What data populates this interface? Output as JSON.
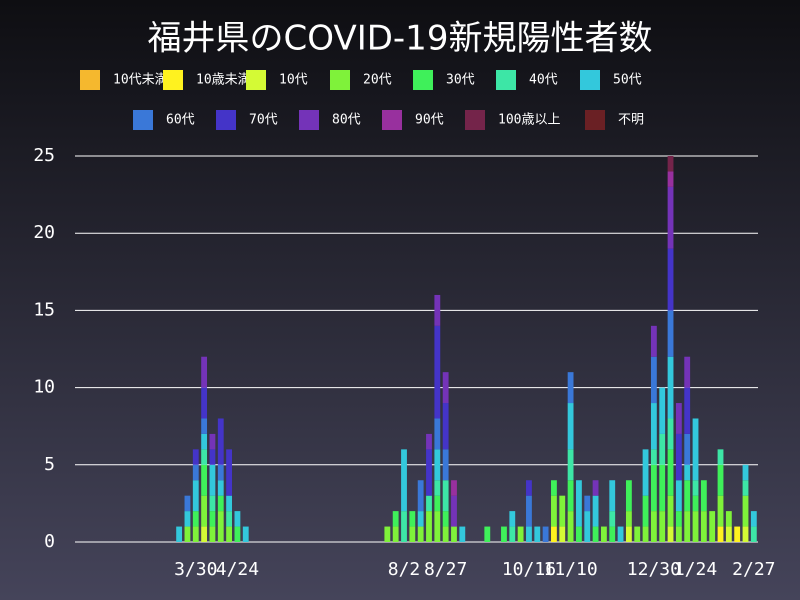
{
  "chart_data": {
    "type": "stacked_bar",
    "title": "福井県のCOVID-19新規陽性者数",
    "categories": [
      null,
      null,
      null,
      null,
      null,
      null,
      null,
      null,
      null,
      null,
      null,
      null,
      null,
      null,
      "3/30",
      null,
      null,
      null,
      null,
      "4/24",
      null,
      null,
      null,
      null,
      null,
      null,
      null,
      null,
      null,
      null,
      null,
      null,
      null,
      null,
      null,
      null,
      null,
      null,
      null,
      "8/2",
      null,
      null,
      null,
      null,
      "8/27",
      null,
      null,
      null,
      null,
      null,
      null,
      null,
      null,
      null,
      "10/16",
      null,
      null,
      null,
      null,
      "11/10",
      null,
      null,
      null,
      null,
      null,
      null,
      null,
      null,
      null,
      "12/30",
      null,
      null,
      null,
      null,
      "1/24",
      null,
      null,
      null,
      null,
      null,
      null,
      "2/27"
    ],
    "ylim": [
      0,
      25
    ],
    "yticks": [
      0,
      5,
      10,
      15,
      20,
      25
    ],
    "grid": true,
    "series": [
      {
        "name": "10代未満",
        "color": "#f5b82e",
        "values": [
          0,
          0,
          0,
          0,
          0,
          0,
          0,
          0,
          0,
          0,
          0,
          0,
          0,
          0,
          0,
          0,
          0,
          0,
          0,
          0,
          0,
          0,
          0,
          0,
          0,
          0,
          0,
          0,
          0,
          0,
          0,
          0,
          0,
          0,
          0,
          0,
          0,
          0,
          0,
          0,
          0,
          0,
          0,
          0,
          0,
          0,
          0,
          0,
          0,
          0,
          0,
          0,
          0,
          0,
          0,
          0,
          0,
          0,
          0,
          0,
          0,
          0,
          0,
          0,
          0,
          0,
          0,
          0,
          0,
          0,
          0,
          0,
          0,
          0,
          0,
          0,
          0,
          0,
          0,
          0,
          0,
          0
        ]
      },
      {
        "name": "10歳未満",
        "color": "#fff21f",
        "values": [
          0,
          0,
          0,
          0,
          0,
          0,
          0,
          0,
          0,
          0,
          0,
          0,
          0,
          0,
          0,
          0,
          0,
          0,
          0,
          0,
          0,
          0,
          0,
          0,
          0,
          0,
          0,
          0,
          0,
          0,
          0,
          0,
          0,
          0,
          0,
          0,
          0,
          0,
          0,
          0,
          0,
          0,
          0,
          0,
          0,
          0,
          0,
          0,
          0,
          0,
          0,
          0,
          0,
          0,
          0,
          0,
          0,
          1,
          0,
          0,
          0,
          0,
          0,
          0,
          0,
          0,
          0,
          0,
          0,
          0,
          0,
          0,
          0,
          0,
          0,
          0,
          0,
          1,
          0,
          1,
          0,
          0
        ]
      },
      {
        "name": "10代",
        "color": "#d4fa35",
        "values": [
          0,
          0,
          0,
          0,
          0,
          0,
          0,
          0,
          0,
          0,
          0,
          0,
          0,
          0,
          0,
          1,
          0,
          0,
          0,
          0,
          0,
          0,
          0,
          0,
          0,
          0,
          0,
          0,
          0,
          0,
          0,
          0,
          0,
          0,
          0,
          0,
          0,
          0,
          0,
          0,
          0,
          0,
          0,
          0,
          0,
          0,
          0,
          0,
          0,
          0,
          0,
          0,
          0,
          0,
          0,
          0,
          0,
          0,
          1,
          0,
          0,
          0,
          0,
          0,
          0,
          0,
          1,
          0,
          0,
          0,
          0,
          1,
          0,
          0,
          0,
          0,
          0,
          0,
          1,
          0,
          1,
          0
        ]
      },
      {
        "name": "20代",
        "color": "#7ff23a",
        "values": [
          0,
          0,
          0,
          0,
          0,
          0,
          0,
          0,
          0,
          0,
          0,
          0,
          0,
          1,
          1,
          2,
          1,
          2,
          1,
          0,
          0,
          0,
          0,
          0,
          0,
          0,
          0,
          0,
          0,
          0,
          0,
          0,
          0,
          0,
          0,
          0,
          0,
          1,
          1,
          0,
          1,
          1,
          2,
          2,
          1,
          1,
          0,
          0,
          0,
          0,
          0,
          0,
          0,
          1,
          0,
          0,
          0,
          2,
          2,
          2,
          0,
          0,
          0,
          1,
          0,
          0,
          1,
          1,
          1,
          2,
          2,
          2,
          1,
          2,
          2,
          2,
          2,
          2,
          1,
          0,
          2,
          0
        ]
      },
      {
        "name": "30代",
        "color": "#3ff05a",
        "values": [
          0,
          0,
          0,
          0,
          0,
          0,
          0,
          0,
          0,
          0,
          0,
          0,
          0,
          0,
          1,
          2,
          1,
          1,
          0,
          1,
          0,
          0,
          0,
          0,
          0,
          0,
          0,
          0,
          0,
          0,
          0,
          0,
          0,
          0,
          0,
          0,
          0,
          0,
          1,
          0,
          1,
          0,
          0,
          1,
          1,
          0,
          0,
          0,
          0,
          1,
          0,
          1,
          0,
          0,
          0,
          0,
          0,
          1,
          0,
          2,
          1,
          0,
          1,
          0,
          1,
          0,
          2,
          0,
          2,
          3,
          3,
          3,
          1,
          2,
          1,
          2,
          0,
          2,
          0,
          0,
          0,
          0
        ]
      },
      {
        "name": "40代",
        "color": "#3de6a6",
        "values": [
          0,
          0,
          0,
          0,
          0,
          0,
          0,
          0,
          0,
          0,
          0,
          0,
          0,
          0,
          0,
          1,
          1,
          0,
          1,
          0,
          0,
          0,
          0,
          0,
          0,
          0,
          0,
          0,
          0,
          0,
          0,
          0,
          0,
          0,
          0,
          0,
          0,
          0,
          0,
          2,
          0,
          0,
          1,
          1,
          2,
          0,
          0,
          0,
          0,
          0,
          0,
          0,
          1,
          0,
          0,
          0,
          0,
          0,
          0,
          2,
          0,
          0,
          0,
          0,
          1,
          0,
          0,
          0,
          0,
          1,
          2,
          2,
          0,
          0,
          1,
          0,
          0,
          1,
          0,
          0,
          1,
          1
        ]
      },
      {
        "name": "50代",
        "color": "#33c8dc",
        "values": [
          0,
          0,
          0,
          0,
          0,
          0,
          0,
          0,
          0,
          0,
          0,
          0,
          1,
          1,
          2,
          1,
          2,
          1,
          1,
          1,
          1,
          0,
          0,
          0,
          0,
          0,
          0,
          0,
          0,
          0,
          0,
          0,
          0,
          0,
          0,
          0,
          0,
          0,
          0,
          4,
          0,
          1,
          0,
          2,
          0,
          0,
          1,
          0,
          0,
          0,
          0,
          0,
          1,
          0,
          1,
          1,
          0,
          0,
          0,
          3,
          3,
          2,
          2,
          0,
          2,
          1,
          0,
          0,
          3,
          3,
          3,
          4,
          2,
          1,
          4,
          0,
          0,
          0,
          0,
          0,
          1,
          1
        ]
      },
      {
        "name": "60代",
        "color": "#3a78d8",
        "values": [
          0,
          0,
          0,
          0,
          0,
          0,
          0,
          0,
          0,
          0,
          0,
          0,
          0,
          1,
          1,
          1,
          0,
          1,
          0,
          0,
          0,
          0,
          0,
          0,
          0,
          0,
          0,
          0,
          0,
          0,
          0,
          0,
          0,
          0,
          0,
          0,
          0,
          0,
          0,
          0,
          0,
          2,
          0,
          2,
          2,
          0,
          0,
          0,
          0,
          0,
          0,
          0,
          0,
          0,
          2,
          0,
          1,
          0,
          0,
          2,
          0,
          1,
          0,
          0,
          0,
          0,
          0,
          0,
          0,
          3,
          0,
          3,
          0,
          2,
          0,
          0,
          0,
          0,
          0,
          0,
          0,
          0
        ]
      },
      {
        "name": "70代",
        "color": "#4434c8",
        "values": [
          0,
          0,
          0,
          0,
          0,
          0,
          0,
          0,
          0,
          0,
          0,
          0,
          0,
          0,
          1,
          2,
          1,
          3,
          3,
          0,
          0,
          0,
          0,
          0,
          0,
          0,
          0,
          0,
          0,
          0,
          0,
          0,
          0,
          0,
          0,
          0,
          0,
          0,
          0,
          0,
          0,
          0,
          3,
          6,
          3,
          0,
          0,
          0,
          0,
          0,
          0,
          0,
          0,
          0,
          1,
          0,
          0,
          0,
          0,
          0,
          0,
          0,
          0,
          0,
          0,
          0,
          0,
          0,
          0,
          0,
          0,
          4,
          3,
          3,
          0,
          0,
          0,
          0,
          0,
          0,
          0,
          0
        ]
      },
      {
        "name": "80代",
        "color": "#7433b8",
        "values": [
          0,
          0,
          0,
          0,
          0,
          0,
          0,
          0,
          0,
          0,
          0,
          0,
          0,
          0,
          0,
          2,
          1,
          0,
          0,
          0,
          0,
          0,
          0,
          0,
          0,
          0,
          0,
          0,
          0,
          0,
          0,
          0,
          0,
          0,
          0,
          0,
          0,
          0,
          0,
          0,
          0,
          0,
          1,
          2,
          2,
          2,
          0,
          0,
          0,
          0,
          0,
          0,
          0,
          0,
          0,
          0,
          0,
          0,
          0,
          0,
          0,
          0,
          1,
          0,
          0,
          0,
          0,
          0,
          0,
          2,
          0,
          4,
          2,
          2,
          0,
          0,
          0,
          0,
          0,
          0,
          0,
          0
        ]
      },
      {
        "name": "90代",
        "color": "#98309e",
        "values": [
          0,
          0,
          0,
          0,
          0,
          0,
          0,
          0,
          0,
          0,
          0,
          0,
          0,
          0,
          0,
          0,
          0,
          0,
          0,
          0,
          0,
          0,
          0,
          0,
          0,
          0,
          0,
          0,
          0,
          0,
          0,
          0,
          0,
          0,
          0,
          0,
          0,
          0,
          0,
          0,
          0,
          0,
          0,
          0,
          0,
          1,
          0,
          0,
          0,
          0,
          0,
          0,
          0,
          0,
          0,
          0,
          0,
          0,
          0,
          0,
          0,
          0,
          0,
          0,
          0,
          0,
          0,
          0,
          0,
          0,
          0,
          1,
          0,
          0,
          0,
          0,
          0,
          0,
          0,
          0,
          0,
          0
        ]
      },
      {
        "name": "100歳以上",
        "color": "#74244a",
        "values": [
          0,
          0,
          0,
          0,
          0,
          0,
          0,
          0,
          0,
          0,
          0,
          0,
          0,
          0,
          0,
          0,
          0,
          0,
          0,
          0,
          0,
          0,
          0,
          0,
          0,
          0,
          0,
          0,
          0,
          0,
          0,
          0,
          0,
          0,
          0,
          0,
          0,
          0,
          0,
          0,
          0,
          0,
          0,
          0,
          0,
          0,
          0,
          0,
          0,
          0,
          0,
          0,
          0,
          0,
          0,
          0,
          0,
          0,
          0,
          0,
          0,
          0,
          0,
          0,
          0,
          0,
          0,
          0,
          0,
          0,
          0,
          1,
          0,
          0,
          0,
          0,
          0,
          0,
          0,
          0,
          0,
          0
        ]
      },
      {
        "name": "不明",
        "color": "#6a2024",
        "values": [
          0,
          0,
          0,
          0,
          0,
          0,
          0,
          0,
          0,
          0,
          0,
          0,
          0,
          0,
          0,
          0,
          0,
          0,
          0,
          0,
          0,
          0,
          0,
          0,
          0,
          0,
          0,
          0,
          0,
          0,
          0,
          0,
          0,
          0,
          0,
          0,
          0,
          0,
          0,
          0,
          0,
          0,
          0,
          0,
          0,
          0,
          0,
          0,
          0,
          0,
          0,
          0,
          0,
          0,
          0,
          0,
          0,
          0,
          0,
          0,
          0,
          0,
          0,
          0,
          0,
          0,
          0,
          0,
          0,
          0,
          0,
          0,
          0,
          0,
          0,
          0,
          0,
          0,
          0,
          0,
          0,
          0
        ]
      }
    ]
  }
}
